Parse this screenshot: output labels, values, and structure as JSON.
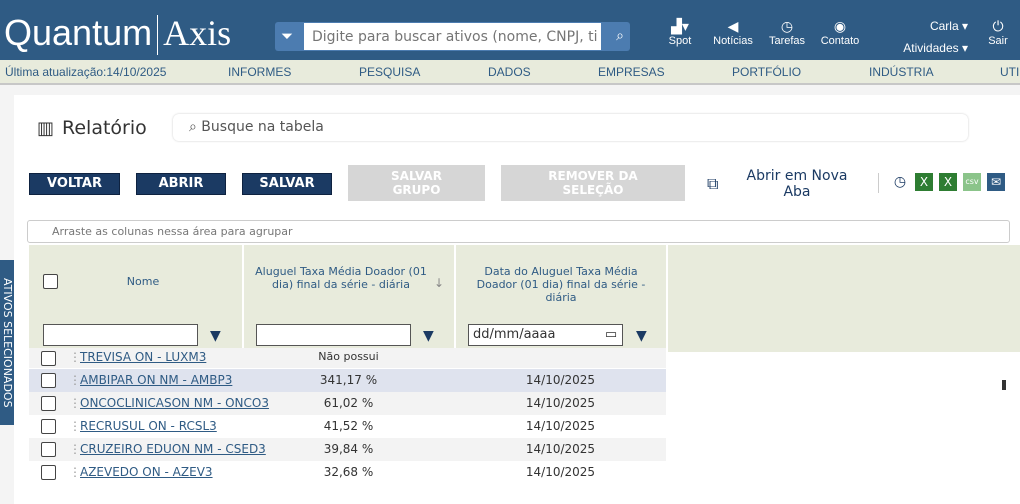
{
  "header": {
    "logo_left": "Quantum",
    "logo_right": "Axis",
    "search_placeholder": "Digite para buscar ativos (nome, CNPJ, ti",
    "items": [
      {
        "label": "Spot",
        "icon": "chart-icon"
      },
      {
        "label": "Notícias",
        "icon": "megaphone-icon"
      },
      {
        "label": "Tarefas",
        "icon": "alarm-icon"
      },
      {
        "label": "Contato",
        "icon": "contact-icon"
      }
    ],
    "user": "Carla",
    "activities": "Atividades",
    "logout": "Sair"
  },
  "menu": {
    "last_update": "Última atualização:14/10/2025",
    "items": [
      "INFORMES",
      "PESQUISA",
      "DADOS",
      "EMPRESAS",
      "PORTFÓLIO",
      "INDÚSTRIA",
      "UTI"
    ]
  },
  "page": {
    "title": "Relatório",
    "table_search_placeholder": "Busque na tabela"
  },
  "toolbar": {
    "voltar": "VOLTAR",
    "abrir": "ABRIR",
    "salvar": "SALVAR",
    "salvar_grupo": "SALVAR GRUPO",
    "remover": "REMOVER DA SELEÇÃO",
    "nova_aba": "Abrir em Nova Aba"
  },
  "group_hint": "Arraste as colunas nessa área para agrupar",
  "side_tab": "ATIVOS SELECIONADOS",
  "table": {
    "columns": [
      "Nome",
      "Aluguel Taxa Média Doador (01 dia) final da série - diária",
      "Data do Aluguel Taxa Média Doador (01 dia) final da série - diária"
    ],
    "sort_icon": "↓",
    "date_placeholder": "dd/mm/aaaa",
    "rows": [
      {
        "name": "TREVISA ON - LUXM3",
        "value": "Não possui",
        "date": ""
      },
      {
        "name": "AMBIPAR ON NM - AMBP3",
        "value": "341,17 %",
        "date": "14/10/2025"
      },
      {
        "name": "ONCOCLINICASON NM - ONCO3",
        "value": "61,02 %",
        "date": "14/10/2025"
      },
      {
        "name": "RECRUSUL ON - RCSL3",
        "value": "41,52 %",
        "date": "14/10/2025"
      },
      {
        "name": "CRUZEIRO EDUON NM - CSED3",
        "value": "39,84 %",
        "date": "14/10/2025"
      },
      {
        "name": "AZEVEDO ON - AZEV3",
        "value": "32,68 %",
        "date": "14/10/2025"
      }
    ]
  },
  "colors": {
    "brand": "#2f5b84",
    "button": "#1b3a63",
    "menu_bg": "#e8ebdc",
    "highlight": "#dfe3ee"
  }
}
